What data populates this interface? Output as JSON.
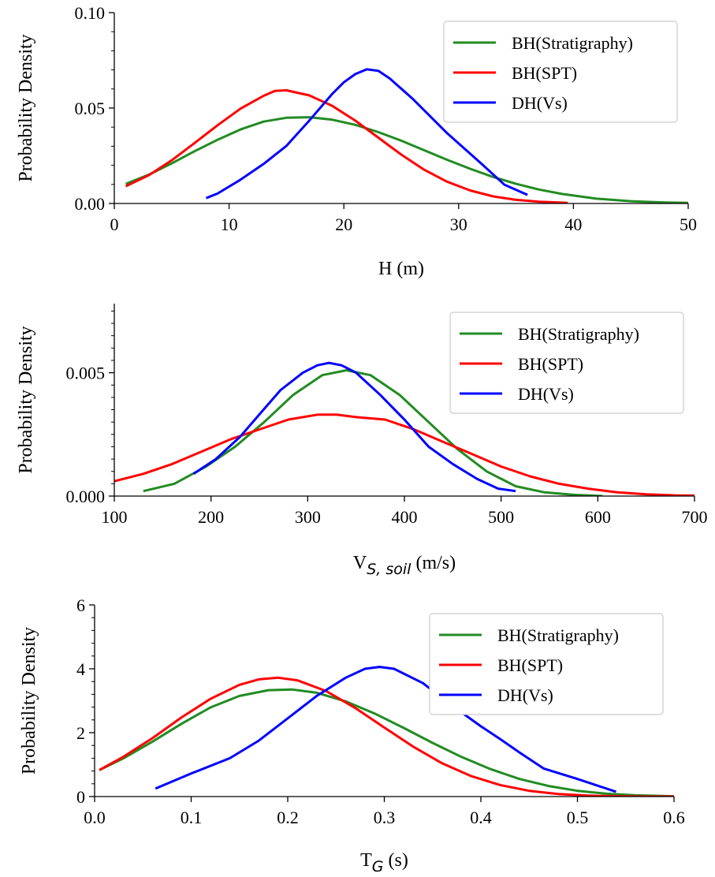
{
  "chart_data": [
    {
      "type": "line",
      "xlabel": "H (m)",
      "ylabel": "Probability Density",
      "xlim": [
        0,
        50
      ],
      "ylim": [
        0,
        0.1
      ],
      "xticks": [
        "0",
        "10",
        "20",
        "30",
        "40",
        "50"
      ],
      "yticks": [
        "0.00",
        "0.05",
        "0.10"
      ],
      "legend_position": "top-right",
      "series": [
        {
          "name": "BH(Stratigraphy)",
          "color": "#228b22",
          "x": [
            1,
            3,
            5,
            7,
            9,
            11,
            13,
            15,
            17,
            19,
            21,
            23,
            25,
            27,
            29,
            31,
            33,
            35,
            37,
            39,
            42,
            45,
            48,
            50
          ],
          "y": [
            0.0103,
            0.0151,
            0.021,
            0.0274,
            0.0334,
            0.0388,
            0.0429,
            0.0449,
            0.0452,
            0.0439,
            0.0412,
            0.0374,
            0.0329,
            0.0279,
            0.0229,
            0.0182,
            0.0139,
            0.0103,
            0.0073,
            0.005,
            0.0025,
            0.0012,
            0.0005,
            0.0003
          ]
        },
        {
          "name": "BH(SPT)",
          "color": "#ff0000",
          "x": [
            1,
            3,
            5,
            7,
            9,
            11,
            13,
            14,
            15,
            17,
            19,
            21,
            23,
            25,
            27,
            29,
            31,
            33,
            35,
            37,
            39.5
          ],
          "y": [
            0.009,
            0.0148,
            0.0226,
            0.0317,
            0.041,
            0.0497,
            0.0564,
            0.059,
            0.0593,
            0.0566,
            0.0511,
            0.0434,
            0.0345,
            0.0256,
            0.0177,
            0.0114,
            0.0068,
            0.0037,
            0.0019,
            0.0009,
            0.0003
          ]
        },
        {
          "name": "DH(Vs)",
          "color": "#0000ff",
          "x": [
            8,
            9,
            11,
            13,
            15,
            17,
            19,
            20,
            21,
            22,
            23,
            24,
            26,
            29,
            32,
            34,
            36
          ],
          "y": [
            0.0028,
            0.0052,
            0.0125,
            0.0207,
            0.0302,
            0.0435,
            0.0575,
            0.0635,
            0.0678,
            0.0703,
            0.0695,
            0.0655,
            0.0548,
            0.0368,
            0.0208,
            0.0098,
            0.0045
          ]
        }
      ]
    },
    {
      "type": "line",
      "xlabel": "V",
      "xlabel_sub": "S, soil",
      "xlabel_unit": "(m/s)",
      "ylabel": "Probability Density",
      "xlim": [
        100,
        700
      ],
      "ylim": [
        0,
        0.0078
      ],
      "xticks": [
        "100",
        "200",
        "300",
        "400",
        "500",
        "600",
        "700"
      ],
      "yticks": [
        "0.000",
        "0.005"
      ],
      "legend_position": "top-right",
      "series": [
        {
          "name": "BH(Stratigraphy)",
          "color": "#228b22",
          "x": [
            130,
            162,
            195,
            225,
            255,
            285,
            315,
            340,
            365,
            395,
            425,
            455,
            485,
            515,
            545,
            575,
            605
          ],
          "y": [
            0.0002,
            0.0005,
            0.0012,
            0.002,
            0.003,
            0.0041,
            0.0049,
            0.0051,
            0.0049,
            0.0041,
            0.003,
            0.0019,
            0.001,
            0.0004,
            0.00015,
            5e-05,
            0.0
          ]
        },
        {
          "name": "BH(SPT)",
          "color": "#ff0000",
          "x": [
            100,
            130,
            160,
            190,
            220,
            250,
            280,
            310,
            330,
            350,
            380,
            410,
            440,
            470,
            500,
            530,
            560,
            590,
            620,
            650,
            680,
            700
          ],
          "y": [
            0.0006,
            0.0009,
            0.0013,
            0.0018,
            0.0023,
            0.0027,
            0.0031,
            0.0033,
            0.0033,
            0.0032,
            0.0031,
            0.0027,
            0.0022,
            0.0017,
            0.0012,
            0.0008,
            0.0005,
            0.0003,
            0.00015,
            7e-05,
            3e-05,
            2e-05
          ]
        },
        {
          "name": "DH(Vs)",
          "color": "#0000ff",
          "x": [
            182,
            205,
            230,
            252,
            272,
            295,
            310,
            322,
            335,
            350,
            375,
            400,
            425,
            450,
            475,
            497,
            515
          ],
          "y": [
            0.0009,
            0.0015,
            0.0024,
            0.0034,
            0.0043,
            0.005,
            0.0053,
            0.0054,
            0.0053,
            0.005,
            0.0041,
            0.0031,
            0.002,
            0.0013,
            0.0007,
            0.0003,
            0.0002
          ]
        }
      ]
    },
    {
      "type": "line",
      "xlabel": "T",
      "xlabel_sub": "G",
      "xlabel_unit": "(s)",
      "ylabel": "Probability Density",
      "xlim": [
        0,
        0.6
      ],
      "ylim": [
        0,
        6
      ],
      "xticks": [
        "0.0",
        "0.1",
        "0.2",
        "0.3",
        "0.4",
        "0.5",
        "0.6"
      ],
      "yticks": [
        "0",
        "2",
        "4",
        "6"
      ],
      "legend_position": "top-right",
      "series": [
        {
          "name": "BH(Stratigraphy)",
          "color": "#228b22",
          "x": [
            0.005,
            0.03,
            0.06,
            0.09,
            0.12,
            0.15,
            0.18,
            0.205,
            0.23,
            0.26,
            0.29,
            0.32,
            0.35,
            0.38,
            0.41,
            0.44,
            0.47,
            0.5,
            0.53,
            0.56,
            0.6
          ],
          "y": [
            0.83,
            1.2,
            1.72,
            2.28,
            2.79,
            3.15,
            3.33,
            3.35,
            3.25,
            2.98,
            2.6,
            2.15,
            1.68,
            1.24,
            0.86,
            0.55,
            0.33,
            0.18,
            0.09,
            0.04,
            0.01
          ]
        },
        {
          "name": "BH(SPT)",
          "color": "#ff0000",
          "x": [
            0.005,
            0.03,
            0.06,
            0.09,
            0.12,
            0.15,
            0.17,
            0.19,
            0.21,
            0.24,
            0.27,
            0.3,
            0.33,
            0.36,
            0.39,
            0.42,
            0.45,
            0.48,
            0.51,
            0.54,
            0.57,
            0.6
          ],
          "y": [
            0.83,
            1.25,
            1.83,
            2.48,
            3.06,
            3.5,
            3.67,
            3.72,
            3.64,
            3.3,
            2.77,
            2.16,
            1.56,
            1.04,
            0.64,
            0.36,
            0.18,
            0.08,
            0.03,
            0.01,
            0.0,
            0.0
          ]
        },
        {
          "name": "DH(Vs)",
          "color": "#0000ff",
          "x": [
            0.063,
            0.1,
            0.14,
            0.17,
            0.2,
            0.23,
            0.26,
            0.28,
            0.295,
            0.31,
            0.34,
            0.37,
            0.4,
            0.42,
            0.44,
            0.465,
            0.5,
            0.54
          ],
          "y": [
            0.25,
            0.72,
            1.2,
            1.75,
            2.45,
            3.15,
            3.72,
            4.0,
            4.06,
            4.0,
            3.55,
            2.85,
            2.2,
            1.8,
            1.38,
            0.88,
            0.55,
            0.15
          ]
        }
      ]
    }
  ]
}
